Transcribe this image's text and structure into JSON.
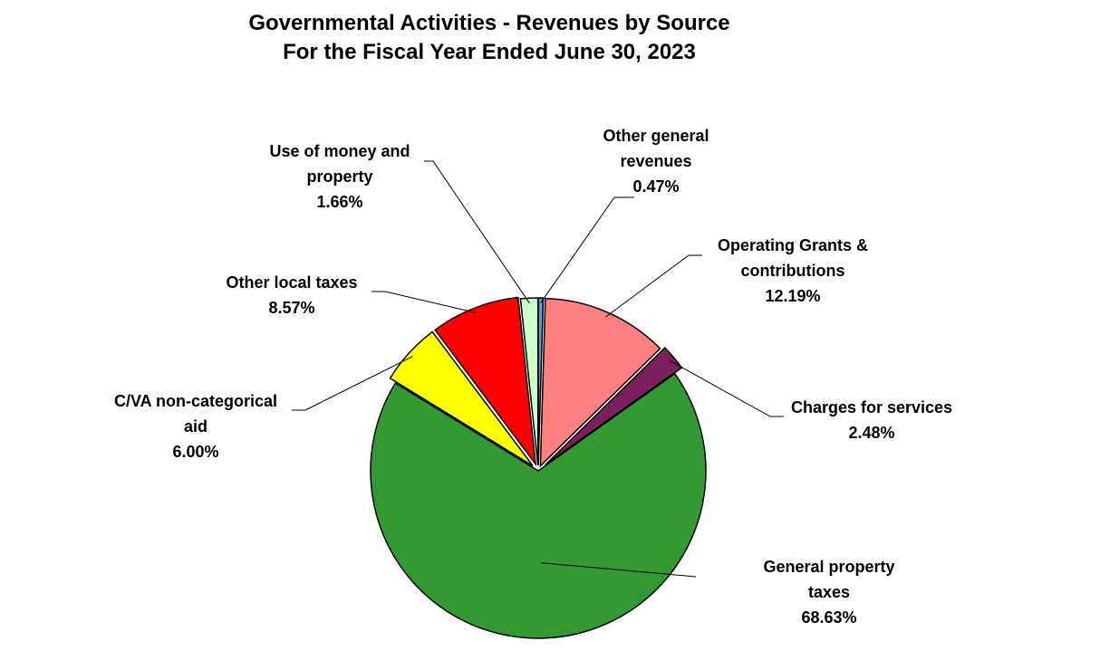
{
  "chart_data": {
    "type": "pie",
    "title": "Governmental Activities - Revenues by Source",
    "subtitle": "For the Fiscal Year Ended June 30, 2023",
    "slices": [
      {
        "label": [
          "Other general",
          "revenues"
        ],
        "value_label": "0.47%",
        "value": 0.47,
        "color": "#5B9BD5"
      },
      {
        "label": [
          "Operating Grants &",
          "contributions"
        ],
        "value_label": "12.19%",
        "value": 12.19,
        "color": "#FF8080"
      },
      {
        "label": [
          "Charges for services"
        ],
        "value_label": "2.48%",
        "value": 2.48,
        "color": "#7B1F5E"
      },
      {
        "label": [
          "General property",
          "taxes"
        ],
        "value_label": "68.63%",
        "value": 68.63,
        "color": "#339933"
      },
      {
        "label": [
          "C/VA non-categorical",
          "aid"
        ],
        "value_label": "6.00%",
        "value": 6.0,
        "color": "#FFFF00"
      },
      {
        "label": [
          "Other local taxes"
        ],
        "value_label": "8.57%",
        "value": 8.57,
        "color": "#FF0000"
      },
      {
        "label": [
          "Use of money and",
          "property"
        ],
        "value_label": "1.66%",
        "value": 1.66,
        "color": "#CCFFCC"
      }
    ]
  }
}
